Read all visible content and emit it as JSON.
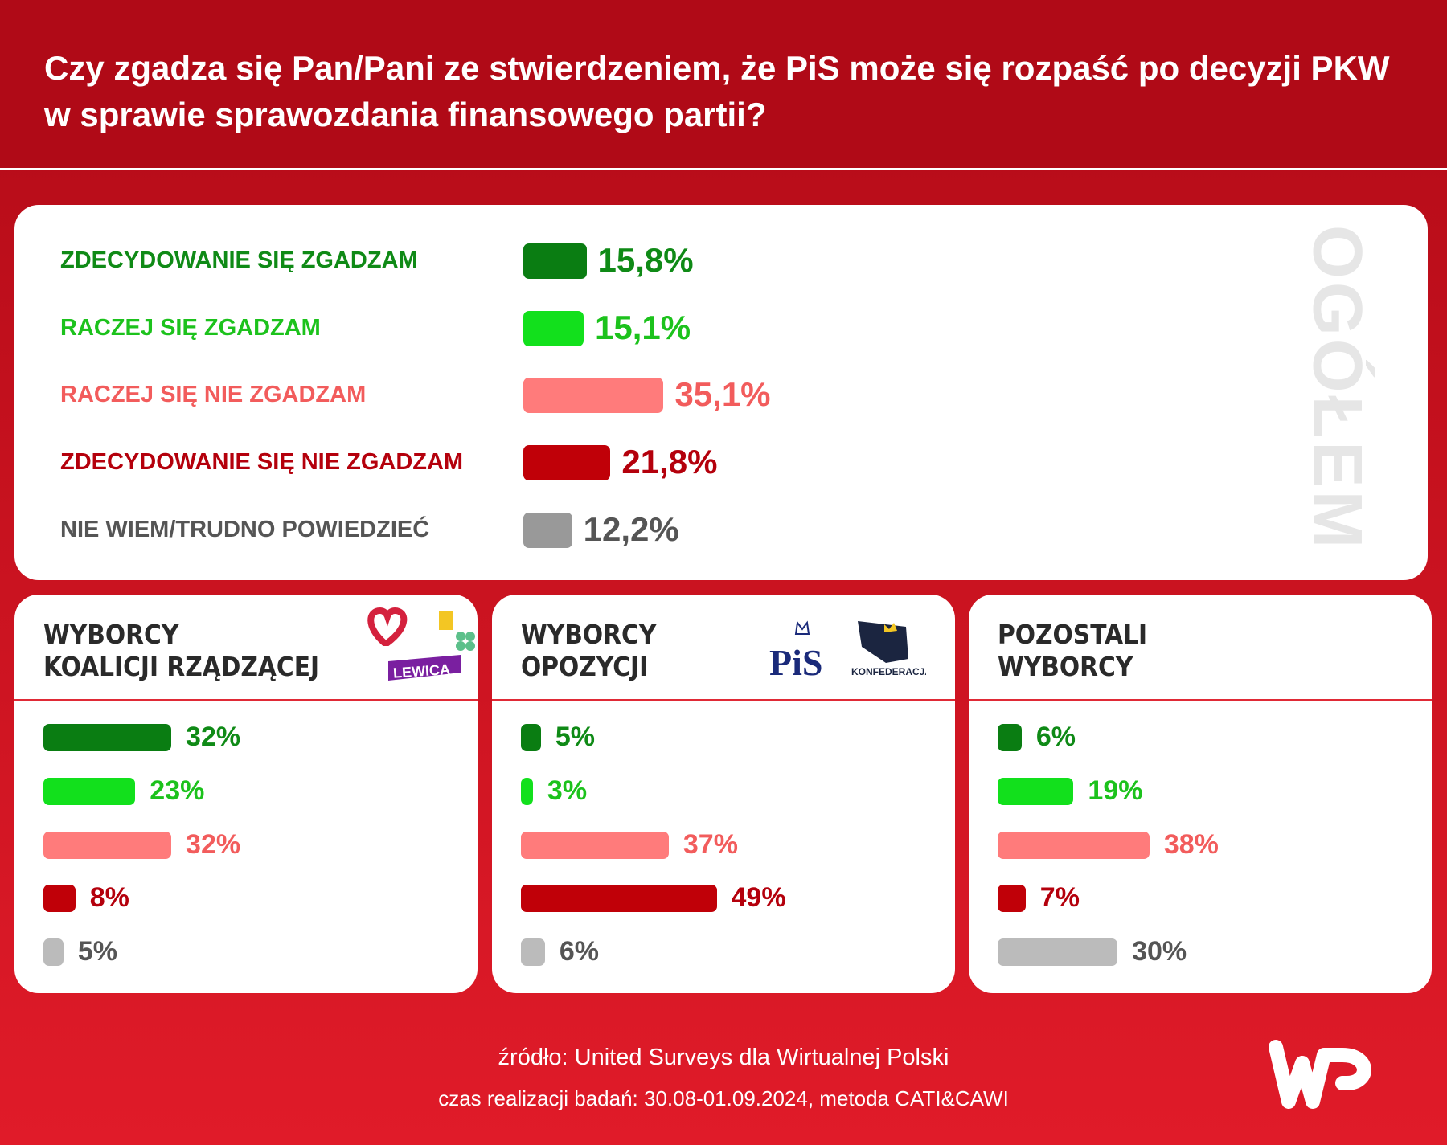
{
  "header": {
    "title": "Czy zgadza się Pan/Pani ze stwierdzeniem, że PiS może się rozpaść po decyzji PKW w sprawie sprawozdania finansowego partii?"
  },
  "chart_data": [
    {
      "type": "bar",
      "title": "OGÓŁEM",
      "categories": [
        "ZDECYDOWANIE SIĘ ZGADZAM",
        "RACZEJ SIĘ ZGADZAM",
        "RACZEJ SIĘ NIE ZGADZAM",
        "ZDECYDOWANIE SIĘ NIE ZGADZAM",
        "NIE WIEM/TRUDNO POWIEDZIEĆ"
      ],
      "values": [
        15.8,
        15.1,
        35.1,
        21.8,
        12.2
      ],
      "labels": [
        "15,8%",
        "15,1%",
        "35,1%",
        "21,8%",
        "12,2%"
      ],
      "colors": [
        "#0a7d12",
        "#12e01c",
        "#ff7b7b",
        "#c00008",
        "#999999"
      ],
      "text_colors": [
        "#0f8a16",
        "#1cc21c",
        "#f25c5c",
        "#b4000c",
        "#555555"
      ]
    },
    {
      "type": "bar",
      "title": "WYBORCY KOALICJI RZĄDZĄCEJ",
      "values": [
        32,
        23,
        32,
        8,
        5
      ],
      "labels": [
        "32%",
        "23%",
        "32%",
        "8%",
        "5%"
      ]
    },
    {
      "type": "bar",
      "title": "WYBORCY OPOZYCJI",
      "values": [
        5,
        3,
        37,
        49,
        6
      ],
      "labels": [
        "5%",
        "3%",
        "37%",
        "49%",
        "6%"
      ]
    },
    {
      "type": "bar",
      "title": "POZOSTALI WYBORCY",
      "values": [
        6,
        19,
        38,
        7,
        30
      ],
      "labels": [
        "6%",
        "19%",
        "38%",
        "7%",
        "30%"
      ]
    }
  ],
  "sub_bar_colors": [
    "#0a7d12",
    "#12e01c",
    "#ff7b7b",
    "#c00008",
    "#bbbbbb"
  ],
  "sub_text_colors": [
    "#0f8a16",
    "#1cc21c",
    "#f25c5c",
    "#b4000c",
    "#555555"
  ],
  "subheads": [
    [
      "WYBORCY",
      "KOALICJI RZĄDZĄCEJ"
    ],
    [
      "WYBORCY",
      "OPOZYCJI"
    ],
    [
      "POZOSTALI",
      "WYBORCY"
    ]
  ],
  "logos": {
    "lewica": "LEWICA",
    "pis": "PiS",
    "konfederacja": "KONFEDERACJA"
  },
  "footer": {
    "source": "źródło: United Surveys dla Wirtualnej Polski",
    "method": "czas realizacji badań: 30.08-01.09.2024, metoda CATI&CAWI"
  }
}
